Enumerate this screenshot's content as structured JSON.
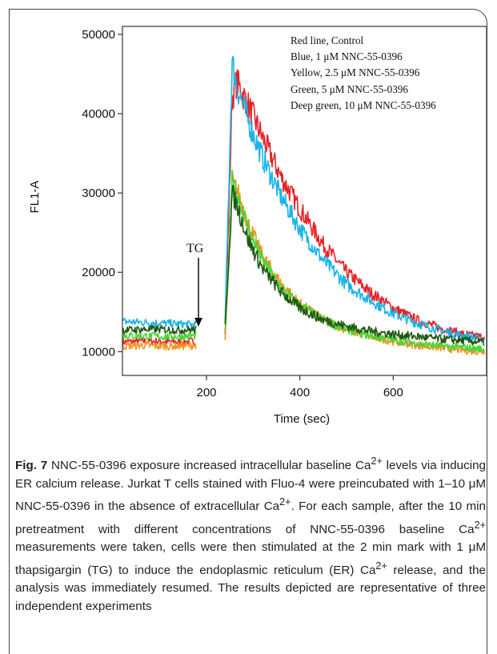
{
  "chart_data": {
    "type": "line",
    "xlabel": "Time (sec)",
    "ylabel": "FL1-A",
    "xlim": [
      20,
      800
    ],
    "ylim": [
      7000,
      51000
    ],
    "xticks": [
      200,
      400,
      600
    ],
    "yticks": [
      10000,
      20000,
      30000,
      40000,
      50000
    ],
    "legend_lines": [
      "Red line, Control",
      "Blue, 1 μM NNC-55-0396",
      "Yellow, 2.5 μM NNC-55-0396",
      "Green, 5 μM NNC-55-0396",
      "Deep green, 10 μM NNC-55-0396"
    ],
    "legend_position": "top-right",
    "annotation": {
      "text": "TG",
      "x": 175
    },
    "series": [
      {
        "color": "#e8232a",
        "x": [
          20,
          60,
          100,
          140,
          175,
          240,
          255,
          265,
          290,
          320,
          360,
          400,
          450,
          500,
          550,
          600,
          650,
          700,
          750,
          795
        ],
        "y": [
          11200,
          11300,
          11300,
          11200,
          11300,
          12000,
          42000,
          44000,
          41000,
          37000,
          32000,
          28000,
          23500,
          20000,
          17500,
          15500,
          14000,
          13000,
          12200,
          11800
        ]
      },
      {
        "color": "#1ab4e8",
        "x": [
          20,
          60,
          100,
          140,
          175,
          240,
          255,
          265,
          290,
          320,
          360,
          400,
          450,
          500,
          550,
          600,
          650,
          700,
          750,
          795
        ],
        "y": [
          13800,
          13700,
          13600,
          13500,
          13400,
          14000,
          46500,
          43500,
          39000,
          34500,
          29500,
          25500,
          21500,
          18500,
          16500,
          14800,
          13600,
          12700,
          12000,
          11500
        ]
      },
      {
        "color": "#f7931e",
        "x": [
          20,
          60,
          100,
          140,
          175,
          240,
          255,
          265,
          290,
          320,
          360,
          400,
          450,
          500,
          550,
          600,
          650,
          700,
          750,
          795
        ],
        "y": [
          10700,
          10800,
          10700,
          10700,
          10800,
          11000,
          31000,
          30500,
          26000,
          22000,
          18500,
          16000,
          14000,
          12800,
          11900,
          11300,
          10800,
          10500,
          10200,
          10000
        ]
      },
      {
        "color": "#4cd437",
        "x": [
          20,
          60,
          100,
          140,
          175,
          240,
          255,
          265,
          290,
          320,
          360,
          400,
          450,
          500,
          550,
          600,
          650,
          700,
          750,
          795
        ],
        "y": [
          12000,
          12000,
          11900,
          11900,
          12000,
          12300,
          31500,
          30000,
          25500,
          21500,
          18000,
          15800,
          14000,
          12800,
          12000,
          11500,
          11000,
          10700,
          10500,
          10300
        ]
      },
      {
        "color": "#1f5a14",
        "x": [
          20,
          60,
          100,
          140,
          175,
          240,
          255,
          265,
          290,
          320,
          360,
          400,
          450,
          500,
          550,
          600,
          650,
          700,
          750,
          795
        ],
        "y": [
          12700,
          12800,
          12800,
          12700,
          12800,
          13000,
          30000,
          28500,
          24000,
          20500,
          17500,
          15500,
          14000,
          13200,
          12600,
          12200,
          11900,
          11600,
          11400,
          11200
        ]
      }
    ]
  },
  "caption": {
    "fig_label": "Fig. 7",
    "text_1": "NNC-55-0396 exposure increased intracellular baseline Ca",
    "sup_1": "2+",
    "text_2": "levels via inducing ER calcium release. Jurkat T cells stained with Fluo-4 were preincubated with 1–10 μM NNC-55-0396 in the absence of extracellular Ca",
    "sup_2": "2+",
    "text_3": ". For each sample, after the 10 min pretreatment with different concentrations of NNC-55-0396 baseline Ca",
    "sup_3": "2+",
    "text_4": "measurements were taken, cells were then stimulated at the 2 min mark with 1 μM thapsigargin (TG) to induce the endoplasmic reticulum (ER) Ca",
    "sup_4": "2+",
    "text_5": "release, and the analysis was immediately resumed. The results depicted are representative of three independent experiments"
  }
}
